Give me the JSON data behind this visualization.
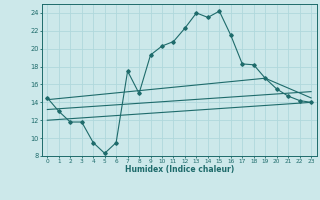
{
  "xlabel": "Humidex (Indice chaleur)",
  "xlim": [
    -0.5,
    23.5
  ],
  "ylim": [
    8,
    25
  ],
  "yticks": [
    8,
    10,
    12,
    14,
    16,
    18,
    20,
    22,
    24
  ],
  "xticks": [
    0,
    1,
    2,
    3,
    4,
    5,
    6,
    7,
    8,
    9,
    10,
    11,
    12,
    13,
    14,
    15,
    16,
    17,
    18,
    19,
    20,
    21,
    22,
    23
  ],
  "bg_color": "#cce8ea",
  "line_color": "#1e6b6b",
  "grid_color": "#b0d8dc",
  "line1_x": [
    0,
    1,
    2,
    3,
    4,
    5,
    6,
    7,
    8,
    9,
    10,
    11,
    12,
    13,
    14,
    15,
    16,
    17,
    18,
    19,
    20,
    21,
    22,
    23
  ],
  "line1_y": [
    14.5,
    13.0,
    11.8,
    11.8,
    9.5,
    8.3,
    9.5,
    17.5,
    15.0,
    19.3,
    20.3,
    20.8,
    22.3,
    24.0,
    23.5,
    24.2,
    21.5,
    18.3,
    18.2,
    16.7,
    15.5,
    14.7,
    14.2,
    14.0
  ],
  "line2_x": [
    0,
    23
  ],
  "line2_y": [
    12.0,
    14.0
  ],
  "line3_x": [
    0,
    23
  ],
  "line3_y": [
    13.2,
    15.2
  ],
  "line4_x": [
    0,
    19,
    23
  ],
  "line4_y": [
    14.3,
    16.7,
    14.5
  ]
}
